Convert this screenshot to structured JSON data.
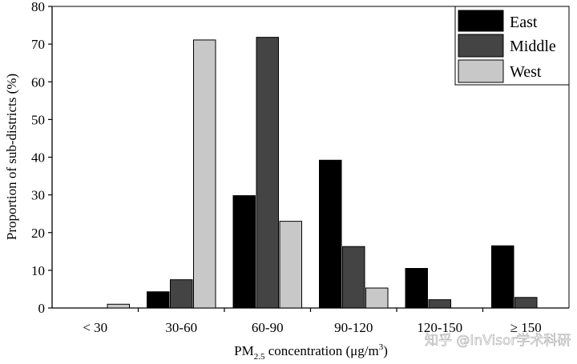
{
  "chart_data": {
    "type": "bar",
    "title": "",
    "xlabel": {
      "prefix": "PM",
      "subscript": "2.5",
      "suffix": " concentration (μg/m",
      "superscript": "3",
      "close": ")"
    },
    "ylabel": "Proportion of sub-districts (%)",
    "ylim": [
      0,
      80
    ],
    "yticks": [
      "0",
      "10",
      "20",
      "30",
      "40",
      "50",
      "60",
      "70",
      "80"
    ],
    "categories": [
      "< 30",
      "30-60",
      "60-90",
      "90-120",
      "120-150",
      "≥ 150"
    ],
    "series": [
      {
        "name": "East",
        "color": "#000000",
        "values": [
          0,
          4.3,
          29.8,
          39.2,
          10.5,
          16.5
        ]
      },
      {
        "name": "Middle",
        "color": "#444444",
        "values": [
          0,
          7.5,
          71.8,
          16.3,
          2.2,
          2.8
        ]
      },
      {
        "name": "West",
        "color": "#c8c8c8",
        "values": [
          1.0,
          71.1,
          23.0,
          5.3,
          0,
          0
        ]
      }
    ],
    "legend_position": "top-right",
    "grid": false
  },
  "watermark": "知乎 @InVisor学术科研"
}
